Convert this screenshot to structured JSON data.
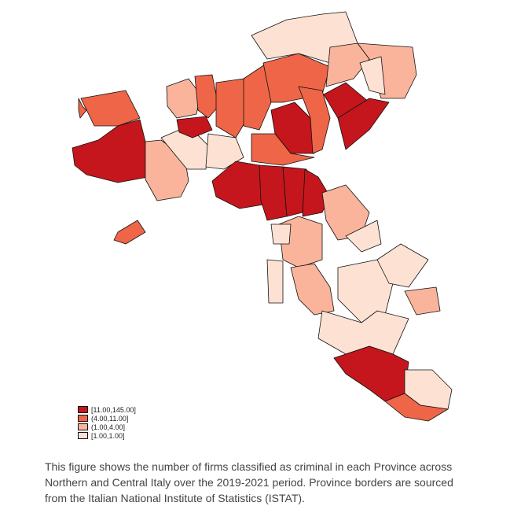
{
  "legend": {
    "items": [
      {
        "label": "[11.00,145.00]",
        "color": "#c4161c"
      },
      {
        "label": "(4.00,11.00]",
        "color": "#ef6548"
      },
      {
        "label": "(1.00,4.00]",
        "color": "#f9b49b"
      },
      {
        "label": "[1.00,1.00]",
        "color": "#fde2d4"
      }
    ]
  },
  "caption": {
    "lines": [
      "This figure shows the number of firms classified as criminal in each Province across",
      "Northern and Central Italy over the 2019-2021 period. Province borders are sourced",
      "from the Italian National Institute of Statistics (ISTAT)."
    ]
  }
}
